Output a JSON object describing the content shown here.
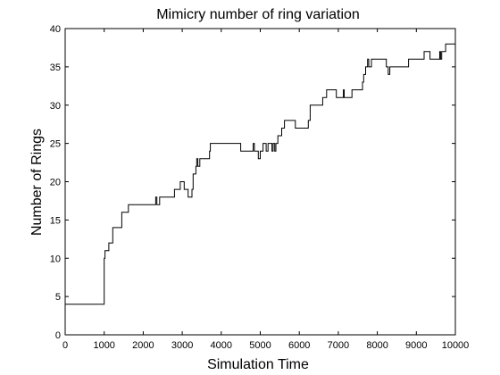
{
  "chart_data": {
    "type": "line",
    "title": "Mimicry number of ring variation",
    "xlabel": "Simulation Time",
    "ylabel": "Number of Rings",
    "xlim": [
      0,
      10000
    ],
    "ylim": [
      0,
      40
    ],
    "xticks": [
      0,
      1000,
      2000,
      3000,
      4000,
      5000,
      6000,
      7000,
      8000,
      9000,
      10000
    ],
    "yticks": [
      0,
      5,
      10,
      15,
      20,
      25,
      30,
      35,
      40
    ],
    "grid": false,
    "legend": "none",
    "line_color": "#000000",
    "series": [
      {
        "x": [
          0,
          1000,
          1000,
          1020,
          1080,
          1120,
          1180,
          1220,
          1300,
          1450,
          1550,
          1620,
          1700,
          2300,
          2320,
          2350,
          2380,
          2420,
          2440,
          2500,
          2750,
          2800,
          2850,
          2950,
          3000,
          3050,
          3100,
          3150,
          3200,
          3250,
          3280,
          3330,
          3350,
          3370,
          3400,
          3450,
          3600,
          3700,
          3720,
          3800,
          4450,
          4500,
          4800,
          4820,
          4850,
          4880,
          4950,
          5000,
          5050,
          5070,
          5100,
          5150,
          5200,
          5250,
          5300,
          5330,
          5370,
          5400,
          5450,
          5500,
          5550,
          5600,
          5620,
          5650,
          5700,
          5850,
          5900,
          6200,
          6230,
          6250,
          6280,
          6550,
          6600,
          6650,
          6700,
          6900,
          6950,
          7100,
          7130,
          7150,
          7200,
          7350,
          7400,
          7600,
          7620,
          7650,
          7700,
          7750,
          7780,
          7800,
          7850,
          8200,
          8230,
          8280,
          8320,
          8350,
          8400,
          8750,
          8800,
          9150,
          9200,
          9300,
          9350,
          9550,
          9600,
          9620,
          9650,
          9700,
          9750,
          9800,
          10000
        ],
        "y": [
          4,
          4,
          10,
          11,
          11,
          12,
          12,
          14,
          14,
          16,
          16,
          17,
          17,
          17,
          18,
          17,
          17,
          18,
          18,
          18,
          18,
          19,
          19,
          20,
          20,
          19,
          19,
          18,
          18,
          19,
          21,
          21,
          22,
          23,
          22,
          23,
          23,
          24,
          25,
          25,
          25,
          24,
          24,
          25,
          24,
          24,
          23,
          24,
          24,
          25,
          25,
          24,
          25,
          25,
          24,
          25,
          24,
          25,
          26,
          26,
          27,
          27,
          28,
          28,
          28,
          28,
          27,
          27,
          28,
          28,
          30,
          30,
          31,
          31,
          32,
          32,
          31,
          31,
          32,
          31,
          31,
          32,
          32,
          32,
          33,
          34,
          35,
          36,
          35,
          35,
          36,
          36,
          35,
          34,
          35,
          35,
          35,
          35,
          36,
          36,
          37,
          37,
          36,
          36,
          37,
          36,
          37,
          37,
          38,
          38,
          38
        ]
      }
    ]
  }
}
